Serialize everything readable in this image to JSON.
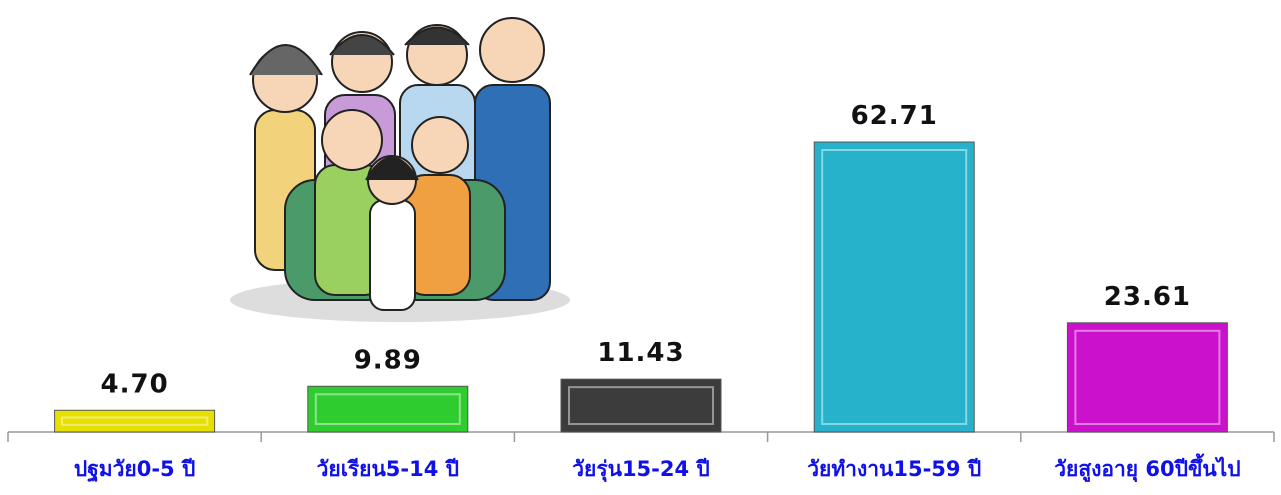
{
  "chart_data": {
    "type": "bar",
    "categories": [
      "ปฐมวัย0-5 ปี",
      "วัยเรียน5-14 ปี",
      "วัยรุ่น15-24 ปี",
      "วัยทำงาน15-59 ปี",
      "วัยสูงอายุ 60ปีขึ้นไป"
    ],
    "values": [
      4.7,
      9.89,
      11.43,
      62.71,
      23.61
    ],
    "value_labels": [
      "4.70",
      "9.89",
      "11.43",
      "62.71",
      "23.61"
    ],
    "colors": [
      "#e6df00",
      "#2fcc2f",
      "#3c3c3c",
      "#27b2cc",
      "#cc11cc"
    ]
  }
}
